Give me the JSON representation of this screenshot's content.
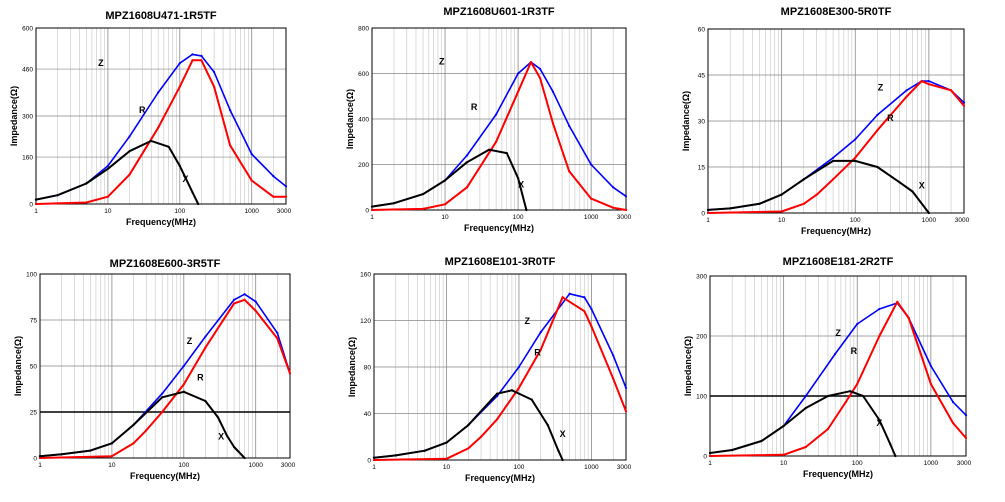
{
  "chart_data": [
    {
      "type": "line",
      "title": "MPZ1608U471-1R5TF",
      "xlabel": "Frequency(MHz)",
      "ylabel": "Impedance(Ω)",
      "xscale": "log",
      "xlim": [
        1,
        3000
      ],
      "ylim": [
        0,
        600
      ],
      "xticks": [
        1,
        10,
        100,
        1000,
        3000
      ],
      "yticks": [
        0,
        160,
        300,
        460,
        600
      ],
      "ytick_labels": [
        "0",
        "160",
        "300",
        "460",
        "600"
      ],
      "series": [
        {
          "name": "Z",
          "color": "#0000ff",
          "x": [
            1,
            2,
            5,
            10,
            20,
            50,
            100,
            150,
            200,
            300,
            500,
            1000,
            2000,
            3000
          ],
          "y": [
            15,
            30,
            70,
            130,
            230,
            380,
            480,
            510,
            505,
            450,
            320,
            170,
            95,
            60
          ]
        },
        {
          "name": "R",
          "color": "#ff0000",
          "x": [
            1,
            5,
            10,
            20,
            50,
            100,
            150,
            200,
            300,
            500,
            1000,
            2000,
            3000
          ],
          "y": [
            0,
            5,
            25,
            100,
            260,
            400,
            490,
            490,
            400,
            200,
            80,
            25,
            25
          ]
        },
        {
          "name": "X",
          "color": "#000000",
          "x": [
            1,
            2,
            5,
            10,
            20,
            40,
            70,
            100,
            150,
            180
          ],
          "y": [
            15,
            30,
            70,
            120,
            180,
            215,
            195,
            130,
            40,
            0
          ]
        }
      ]
    },
    {
      "type": "line",
      "title": "MPZ1608U601-1R3TF",
      "xlabel": "Frequency(MHz)",
      "ylabel": "Impedance(Ω)",
      "xscale": "log",
      "xlim": [
        1,
        3000
      ],
      "ylim": [
        0,
        800
      ],
      "xticks": [
        1,
        10,
        100,
        1000,
        3000
      ],
      "yticks": [
        0,
        200,
        400,
        600,
        800
      ],
      "ytick_labels": [
        "0",
        "200",
        "400",
        "600",
        "800"
      ],
      "series": [
        {
          "name": "Z",
          "color": "#0000ff",
          "x": [
            1,
            2,
            5,
            10,
            20,
            50,
            100,
            150,
            200,
            300,
            500,
            1000,
            2000,
            3000
          ],
          "y": [
            15,
            30,
            70,
            130,
            240,
            420,
            600,
            650,
            620,
            520,
            370,
            200,
            100,
            60
          ]
        },
        {
          "name": "R",
          "color": "#ff0000",
          "x": [
            1,
            5,
            10,
            20,
            50,
            100,
            150,
            200,
            300,
            500,
            1000,
            2000,
            3000
          ],
          "y": [
            0,
            5,
            25,
            100,
            300,
            520,
            650,
            580,
            380,
            170,
            50,
            10,
            0
          ]
        },
        {
          "name": "X",
          "color": "#000000",
          "x": [
            1,
            2,
            5,
            10,
            20,
            40,
            70,
            100,
            130
          ],
          "y": [
            15,
            30,
            70,
            130,
            210,
            265,
            250,
            140,
            0
          ]
        }
      ]
    },
    {
      "type": "line",
      "title": "MPZ1608E300-5R0TF",
      "xlabel": "Frequency(MHz)",
      "ylabel": "Impedance(Ω)",
      "xscale": "log",
      "xlim": [
        1,
        3000
      ],
      "ylim": [
        0,
        60
      ],
      "xticks": [
        1,
        10,
        100,
        1000,
        3000
      ],
      "yticks": [
        0,
        15,
        30,
        45,
        60
      ],
      "ytick_labels": [
        "0",
        "15",
        "30",
        "45",
        "60"
      ],
      "series": [
        {
          "name": "Z",
          "color": "#0000ff",
          "x": [
            1,
            2,
            5,
            10,
            20,
            50,
            100,
            200,
            500,
            800,
            1000,
            2000,
            3000
          ],
          "y": [
            1,
            1.5,
            3,
            6,
            11,
            18,
            24,
            32,
            40,
            43,
            43,
            40,
            36
          ]
        },
        {
          "name": "R",
          "color": "#ff0000",
          "x": [
            1,
            10,
            20,
            30,
            50,
            100,
            200,
            500,
            800,
            1000,
            2000,
            3000
          ],
          "y": [
            0,
            0.5,
            3,
            6,
            11,
            18,
            27,
            38,
            43,
            42,
            40,
            35
          ]
        },
        {
          "name": "X",
          "color": "#000000",
          "x": [
            1,
            2,
            5,
            10,
            20,
            50,
            100,
            200,
            400,
            600,
            1000
          ],
          "y": [
            1,
            1.5,
            3,
            6,
            11,
            17,
            17,
            15,
            10,
            7,
            0
          ]
        }
      ]
    },
    {
      "type": "line",
      "title": "MPZ1608E600-3R5TF",
      "xlabel": "Frequency(MHz)",
      "ylabel": "Impedance(Ω)",
      "xscale": "log",
      "xlim": [
        1,
        3000
      ],
      "ylim": [
        0,
        100
      ],
      "xticks": [
        1,
        10,
        100,
        1000,
        3000
      ],
      "yticks": [
        0,
        25,
        50,
        75,
        100
      ],
      "ytick_labels": [
        "0",
        "25",
        "50",
        "75",
        "100"
      ],
      "series": [
        {
          "name": "Z",
          "color": "#0000ff",
          "x": [
            1,
            2,
            5,
            10,
            20,
            50,
            100,
            200,
            500,
            700,
            1000,
            2000,
            3000
          ],
          "y": [
            1,
            2,
            4,
            8,
            18,
            35,
            50,
            66,
            86,
            89,
            85,
            68,
            46
          ]
        },
        {
          "name": "R",
          "color": "#ff0000",
          "x": [
            1,
            10,
            20,
            30,
            50,
            100,
            200,
            500,
            700,
            1000,
            2000,
            3000
          ],
          "y": [
            0,
            1,
            8,
            15,
            25,
            40,
            60,
            84,
            86,
            80,
            65,
            46
          ]
        },
        {
          "name": "X",
          "color": "#000000",
          "x": [
            1,
            2,
            5,
            10,
            20,
            50,
            100,
            200,
            300,
            400,
            500,
            700
          ],
          "y": [
            1,
            2,
            4,
            8,
            18,
            33,
            36,
            31,
            22,
            12,
            6,
            0
          ]
        }
      ]
    },
    {
      "type": "line",
      "title": "MPZ1608E101-3R0TF",
      "xlabel": "Frequency(MHz)",
      "ylabel": "Impedance(Ω)",
      "xscale": "log",
      "xlim": [
        1,
        3000
      ],
      "ylim": [
        0,
        160
      ],
      "xticks": [
        1,
        10,
        100,
        1000,
        3000
      ],
      "yticks": [
        0,
        40,
        80,
        120,
        160
      ],
      "ytick_labels": [
        "0",
        "40",
        "80",
        "120",
        "160"
      ],
      "series": [
        {
          "name": "Z",
          "color": "#0000ff",
          "x": [
            1,
            2,
            5,
            10,
            20,
            50,
            100,
            200,
            500,
            800,
            1000,
            2000,
            3000
          ],
          "y": [
            2,
            4,
            8,
            15,
            30,
            55,
            80,
            110,
            143,
            140,
            130,
            90,
            62
          ]
        },
        {
          "name": "R",
          "color": "#ff0000",
          "x": [
            1,
            10,
            20,
            30,
            50,
            100,
            200,
            400,
            800,
            1000,
            2000,
            3000
          ],
          "y": [
            0,
            1,
            10,
            20,
            35,
            62,
            95,
            140,
            128,
            115,
            70,
            42
          ]
        },
        {
          "name": "X",
          "color": "#000000",
          "x": [
            1,
            2,
            5,
            10,
            20,
            50,
            80,
            150,
            250,
            350,
            400
          ],
          "y": [
            2,
            4,
            8,
            15,
            30,
            57,
            60,
            52,
            30,
            8,
            0
          ]
        }
      ]
    },
    {
      "type": "line",
      "title": "MPZ1608E181-2R2TF",
      "xlabel": "Frequency(MHz)",
      "ylabel": "Impedance(Ω)",
      "xscale": "log",
      "xlim": [
        1,
        3000
      ],
      "ylim": [
        0,
        300
      ],
      "xticks": [
        1,
        10,
        100,
        1000,
        3000
      ],
      "yticks": [
        0,
        100,
        200,
        300
      ],
      "ytick_labels": [
        "0",
        "100",
        "200",
        "300"
      ],
      "series": [
        {
          "name": "Z",
          "color": "#0000ff",
          "x": [
            1,
            2,
            5,
            10,
            20,
            50,
            100,
            200,
            350,
            500,
            1000,
            2000,
            3000
          ],
          "y": [
            5,
            10,
            25,
            50,
            100,
            170,
            220,
            245,
            255,
            230,
            150,
            90,
            68
          ]
        },
        {
          "name": "R",
          "color": "#ff0000",
          "x": [
            1,
            10,
            20,
            40,
            70,
            100,
            200,
            350,
            500,
            1000,
            2000,
            3000
          ],
          "y": [
            0,
            2,
            15,
            45,
            90,
            120,
            200,
            257,
            230,
            120,
            55,
            30
          ]
        },
        {
          "name": "X",
          "color": "#000000",
          "x": [
            1,
            2,
            5,
            10,
            20,
            40,
            80,
            120,
            200,
            280,
            330
          ],
          "y": [
            5,
            10,
            25,
            50,
            80,
            100,
            108,
            100,
            60,
            20,
            0
          ]
        }
      ]
    }
  ]
}
